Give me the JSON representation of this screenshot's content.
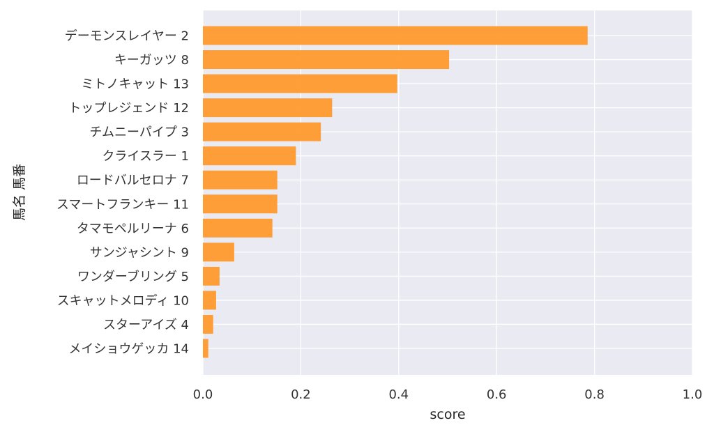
{
  "chart_data": {
    "type": "bar",
    "orientation": "horizontal",
    "categories": [
      "デーモンスレイヤー 2",
      "キーガッツ 8",
      "ミトノキャット 13",
      "トップレジェンド 12",
      "チムニーパイプ 3",
      "クライスラー 1",
      "ロードバルセロナ 7",
      "スマートフランキー 11",
      "タマモペルリーナ 6",
      "サンジャシント 9",
      "ワンダーブリング 5",
      "スキャットメロディ 10",
      "スターアイズ 4",
      "メイショウゲッカ 14"
    ],
    "values": [
      0.786,
      0.503,
      0.397,
      0.264,
      0.241,
      0.19,
      0.152,
      0.152,
      0.142,
      0.064,
      0.034,
      0.027,
      0.021,
      0.011
    ],
    "xlabel": "score",
    "ylabel": "馬名 馬番",
    "xlim": [
      0.0,
      1.0
    ],
    "xticks": [
      "0.0",
      "0.2",
      "0.4",
      "0.6",
      "0.8",
      "1.0"
    ],
    "grid": true,
    "bar_color": "#ff9a2e",
    "background_color": "#eaeaf2"
  }
}
